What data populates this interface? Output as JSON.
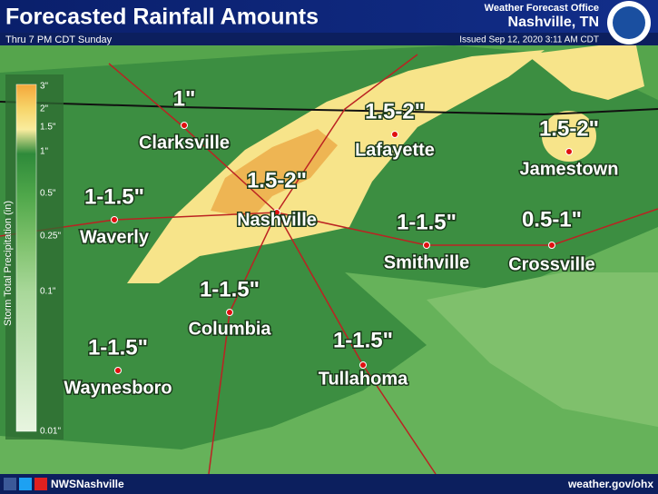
{
  "header": {
    "title": "Forecasted Rainfall Amounts",
    "subtitle": "Thru 7 PM CDT Sunday",
    "office": "Weather Forecast Office",
    "office_location": "Nashville, TN",
    "issued": "Issued Sep 12, 2020 3:11 AM CDT"
  },
  "legend": {
    "title": "Storm Total Precipitation (in)",
    "labels": [
      "3\"",
      "2\"",
      "1.5\"",
      "1\"",
      "0.5\"",
      "0.25\"",
      "0.1\"",
      "0.01\""
    ]
  },
  "cities": [
    {
      "name": "Clarksville",
      "amount": "1\""
    },
    {
      "name": "Lafayette",
      "amount": "1.5-2\""
    },
    {
      "name": "Jamestown",
      "amount": "1.5-2\""
    },
    {
      "name": "Nashville",
      "amount": "1.5-2\""
    },
    {
      "name": "Waverly",
      "amount": "1-1.5\""
    },
    {
      "name": "Smithville",
      "amount": "1-1.5\""
    },
    {
      "name": "Crossville",
      "amount": "0.5-1\""
    },
    {
      "name": "Columbia",
      "amount": "1-1.5\""
    },
    {
      "name": "Tullahoma",
      "amount": "1-1.5\""
    },
    {
      "name": "Waynesboro",
      "amount": "1-1.5\""
    }
  ],
  "footer": {
    "social": "NWSNashville",
    "url": "weather.gov/ohx"
  }
}
